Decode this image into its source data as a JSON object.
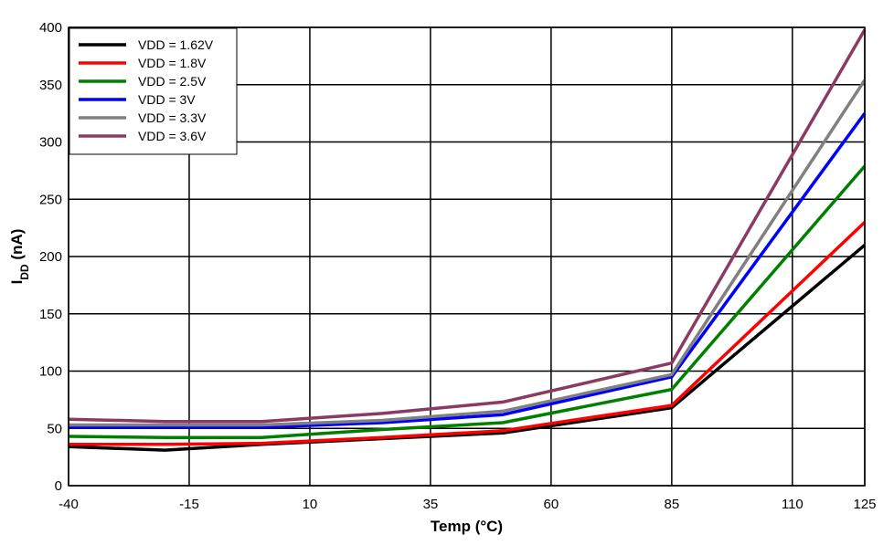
{
  "chart_data": {
    "type": "line",
    "title": "",
    "xlabel": "Temp (°C)",
    "ylabel_main": "I",
    "ylabel_sub": "DD",
    "ylabel_unit": " (nA)",
    "xlim": [
      -40,
      125
    ],
    "ylim": [
      0,
      400
    ],
    "xticks": [
      -40,
      -15,
      10,
      35,
      60,
      85,
      110,
      125
    ],
    "yticks": [
      0,
      50,
      100,
      150,
      200,
      250,
      300,
      350,
      400
    ],
    "grid": true,
    "legend_position": "top-left",
    "series": [
      {
        "name": "VDD = 1.62V",
        "color": "#000000",
        "x": [
          -40,
          -20,
          0,
          25,
          50,
          85,
          125
        ],
        "y": [
          34,
          31,
          36,
          41,
          46,
          68,
          210
        ]
      },
      {
        "name": "VDD = 1.8V",
        "color": "#ff0000",
        "x": [
          -40,
          -20,
          0,
          25,
          50,
          85,
          125
        ],
        "y": [
          36,
          36,
          37,
          42,
          48,
          70,
          230
        ]
      },
      {
        "name": "VDD = 2.5V",
        "color": "#008000",
        "x": [
          -40,
          -20,
          0,
          25,
          50,
          85,
          125
        ],
        "y": [
          43,
          42,
          42,
          49,
          55,
          84,
          279
        ]
      },
      {
        "name": "VDD = 3V",
        "color": "#0000ff",
        "x": [
          -40,
          -20,
          0,
          25,
          50,
          85,
          125
        ],
        "y": [
          51,
          51,
          51,
          55,
          62,
          95,
          325
        ]
      },
      {
        "name": "VDD = 3.3V",
        "color": "#808080",
        "x": [
          -40,
          -20,
          0,
          25,
          50,
          85,
          125
        ],
        "y": [
          53,
          53,
          53,
          57,
          65,
          97,
          354
        ]
      },
      {
        "name": "VDD = 3.6V",
        "color": "#8b3a62",
        "x": [
          -40,
          -20,
          0,
          25,
          50,
          85,
          125
        ],
        "y": [
          58,
          56,
          56,
          63,
          73,
          107,
          398
        ]
      }
    ]
  }
}
